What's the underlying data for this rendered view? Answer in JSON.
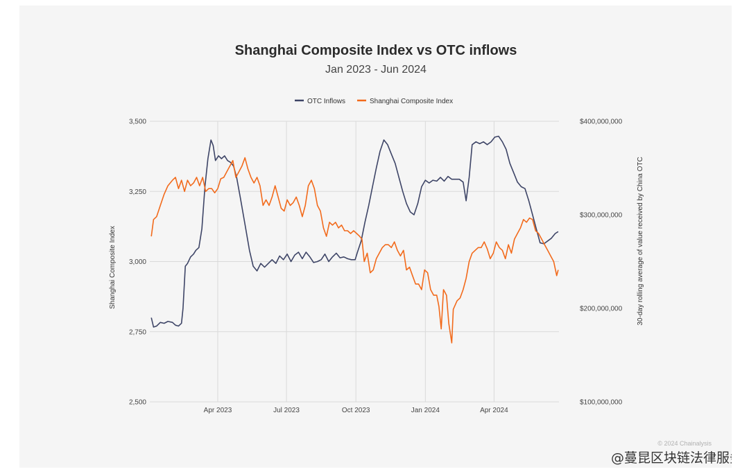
{
  "chart_data": {
    "type": "line",
    "title": "Shanghai Composite Index vs OTC inflows",
    "subtitle": "Jan 2023 - Jun 2024",
    "legend_position": "top-center",
    "grid": true,
    "x_ticks": [
      "Apr 2023",
      "Jul 2023",
      "Oct 2023",
      "Jan 2024",
      "Apr 2024"
    ],
    "y_left": {
      "label": "Shanghai Composite Index",
      "lim": [
        2500,
        3500
      ],
      "ticks": [
        "2,500",
        "2,750",
        "3,000",
        "3,250",
        "3,500"
      ]
    },
    "y_right": {
      "label": "30-day rolling average of value received by China OTC",
      "lim": [
        100000000,
        400000000
      ],
      "ticks": [
        "$100,000,000",
        "$200,000,000",
        "$300,000,000",
        "$400,000,000"
      ]
    },
    "series": [
      {
        "name": "OTC Inflows",
        "axis": "right",
        "color": "#3d4466",
        "points": [
          [
            "2023-01-03",
            190000000
          ],
          [
            "2023-01-06",
            180000000
          ],
          [
            "2023-01-10",
            181000000
          ],
          [
            "2023-01-15",
            185000000
          ],
          [
            "2023-01-20",
            184000000
          ],
          [
            "2023-01-25",
            186000000
          ],
          [
            "2023-01-31",
            185000000
          ],
          [
            "2023-02-04",
            182000000
          ],
          [
            "2023-02-08",
            181000000
          ],
          [
            "2023-02-12",
            184000000
          ],
          [
            "2023-02-14",
            200000000
          ],
          [
            "2023-02-17",
            245000000
          ],
          [
            "2023-02-20",
            248000000
          ],
          [
            "2023-02-24",
            255000000
          ],
          [
            "2023-02-28",
            258000000
          ],
          [
            "2023-03-03",
            262000000
          ],
          [
            "2023-03-07",
            265000000
          ],
          [
            "2023-03-11",
            285000000
          ],
          [
            "2023-03-15",
            330000000
          ],
          [
            "2023-03-19",
            360000000
          ],
          [
            "2023-03-23",
            380000000
          ],
          [
            "2023-03-26",
            374000000
          ],
          [
            "2023-03-29",
            358000000
          ],
          [
            "2023-04-02",
            363000000
          ],
          [
            "2023-04-06",
            360000000
          ],
          [
            "2023-04-10",
            363000000
          ],
          [
            "2023-04-14",
            358000000
          ],
          [
            "2023-04-18",
            356000000
          ],
          [
            "2023-04-22",
            352000000
          ],
          [
            "2023-04-26",
            340000000
          ],
          [
            "2023-05-01",
            318000000
          ],
          [
            "2023-05-07",
            290000000
          ],
          [
            "2023-05-13",
            262000000
          ],
          [
            "2023-05-18",
            245000000
          ],
          [
            "2023-05-23",
            240000000
          ],
          [
            "2023-05-28",
            248000000
          ],
          [
            "2023-06-02",
            244000000
          ],
          [
            "2023-06-07",
            248000000
          ],
          [
            "2023-06-12",
            252000000
          ],
          [
            "2023-06-17",
            248000000
          ],
          [
            "2023-06-22",
            256000000
          ],
          [
            "2023-06-27",
            252000000
          ],
          [
            "2023-07-02",
            258000000
          ],
          [
            "2023-07-07",
            250000000
          ],
          [
            "2023-07-12",
            257000000
          ],
          [
            "2023-07-17",
            260000000
          ],
          [
            "2023-07-22",
            253000000
          ],
          [
            "2023-07-27",
            260000000
          ],
          [
            "2023-08-01",
            255000000
          ],
          [
            "2023-08-06",
            249000000
          ],
          [
            "2023-08-11",
            250000000
          ],
          [
            "2023-08-16",
            252000000
          ],
          [
            "2023-08-21",
            258000000
          ],
          [
            "2023-08-26",
            250000000
          ],
          [
            "2023-08-31",
            255000000
          ],
          [
            "2023-09-05",
            259000000
          ],
          [
            "2023-09-10",
            254000000
          ],
          [
            "2023-09-15",
            255000000
          ],
          [
            "2023-09-20",
            253000000
          ],
          [
            "2023-09-25",
            252000000
          ],
          [
            "2023-09-30",
            252000000
          ],
          [
            "2023-10-03",
            260000000
          ],
          [
            "2023-10-08",
            272000000
          ],
          [
            "2023-10-13",
            292000000
          ],
          [
            "2023-10-18",
            310000000
          ],
          [
            "2023-10-23",
            330000000
          ],
          [
            "2023-10-28",
            350000000
          ],
          [
            "2023-11-02",
            368000000
          ],
          [
            "2023-11-07",
            380000000
          ],
          [
            "2023-11-12",
            375000000
          ],
          [
            "2023-11-17",
            365000000
          ],
          [
            "2023-11-22",
            355000000
          ],
          [
            "2023-11-27",
            340000000
          ],
          [
            "2023-12-02",
            325000000
          ],
          [
            "2023-12-07",
            312000000
          ],
          [
            "2023-12-12",
            303000000
          ],
          [
            "2023-12-17",
            300000000
          ],
          [
            "2023-12-22",
            312000000
          ],
          [
            "2023-12-27",
            330000000
          ],
          [
            "2024-01-01",
            337000000
          ],
          [
            "2024-01-06",
            334000000
          ],
          [
            "2024-01-11",
            337000000
          ],
          [
            "2024-01-16",
            336000000
          ],
          [
            "2024-01-21",
            340000000
          ],
          [
            "2024-01-26",
            336000000
          ],
          [
            "2024-01-31",
            341000000
          ],
          [
            "2024-02-05",
            338000000
          ],
          [
            "2024-02-10",
            338000000
          ],
          [
            "2024-02-15",
            338000000
          ],
          [
            "2024-02-20",
            335000000
          ],
          [
            "2024-02-24",
            315000000
          ],
          [
            "2024-02-28",
            340000000
          ],
          [
            "2024-03-03",
            375000000
          ],
          [
            "2024-03-08",
            378000000
          ],
          [
            "2024-03-13",
            376000000
          ],
          [
            "2024-03-18",
            378000000
          ],
          [
            "2024-03-23",
            375000000
          ],
          [
            "2024-03-28",
            378000000
          ],
          [
            "2024-04-02",
            383000000
          ],
          [
            "2024-04-07",
            384000000
          ],
          [
            "2024-04-12",
            378000000
          ],
          [
            "2024-04-17",
            370000000
          ],
          [
            "2024-04-22",
            355000000
          ],
          [
            "2024-04-27",
            345000000
          ],
          [
            "2024-05-02",
            335000000
          ],
          [
            "2024-05-07",
            330000000
          ],
          [
            "2024-05-12",
            328000000
          ],
          [
            "2024-05-17",
            315000000
          ],
          [
            "2024-05-22",
            300000000
          ],
          [
            "2024-05-27",
            285000000
          ],
          [
            "2024-06-01",
            270000000
          ],
          [
            "2024-06-06",
            269000000
          ],
          [
            "2024-06-11",
            272000000
          ],
          [
            "2024-06-16",
            275000000
          ],
          [
            "2024-06-21",
            280000000
          ],
          [
            "2024-06-25",
            282000000
          ]
        ]
      },
      {
        "name": "Shanghai Composite Index",
        "axis": "left",
        "color": "#f26a1b",
        "points": [
          [
            "2023-01-03",
            3090
          ],
          [
            "2023-01-06",
            3150
          ],
          [
            "2023-01-10",
            3160
          ],
          [
            "2023-01-15",
            3200
          ],
          [
            "2023-01-20",
            3240
          ],
          [
            "2023-01-25",
            3270
          ],
          [
            "2023-01-31",
            3290
          ],
          [
            "2023-02-04",
            3300
          ],
          [
            "2023-02-08",
            3260
          ],
          [
            "2023-02-12",
            3290
          ],
          [
            "2023-02-16",
            3250
          ],
          [
            "2023-02-20",
            3290
          ],
          [
            "2023-02-24",
            3270
          ],
          [
            "2023-02-28",
            3280
          ],
          [
            "2023-03-04",
            3300
          ],
          [
            "2023-03-08",
            3270
          ],
          [
            "2023-03-12",
            3300
          ],
          [
            "2023-03-16",
            3250
          ],
          [
            "2023-03-20",
            3260
          ],
          [
            "2023-03-24",
            3260
          ],
          [
            "2023-03-28",
            3245
          ],
          [
            "2023-04-01",
            3260
          ],
          [
            "2023-04-05",
            3295
          ],
          [
            "2023-04-09",
            3300
          ],
          [
            "2023-04-13",
            3320
          ],
          [
            "2023-04-17",
            3340
          ],
          [
            "2023-04-21",
            3360
          ],
          [
            "2023-04-25",
            3300
          ],
          [
            "2023-04-29",
            3320
          ],
          [
            "2023-05-03",
            3340
          ],
          [
            "2023-05-07",
            3370
          ],
          [
            "2023-05-11",
            3330
          ],
          [
            "2023-05-15",
            3300
          ],
          [
            "2023-05-19",
            3280
          ],
          [
            "2023-05-23",
            3300
          ],
          [
            "2023-05-27",
            3270
          ],
          [
            "2023-05-31",
            3200
          ],
          [
            "2023-06-04",
            3220
          ],
          [
            "2023-06-08",
            3200
          ],
          [
            "2023-06-12",
            3230
          ],
          [
            "2023-06-16",
            3270
          ],
          [
            "2023-06-20",
            3230
          ],
          [
            "2023-06-24",
            3190
          ],
          [
            "2023-06-28",
            3180
          ],
          [
            "2023-07-02",
            3220
          ],
          [
            "2023-07-06",
            3200
          ],
          [
            "2023-07-10",
            3210
          ],
          [
            "2023-07-14",
            3230
          ],
          [
            "2023-07-18",
            3200
          ],
          [
            "2023-07-22",
            3160
          ],
          [
            "2023-07-26",
            3200
          ],
          [
            "2023-07-30",
            3270
          ],
          [
            "2023-08-03",
            3290
          ],
          [
            "2023-08-07",
            3260
          ],
          [
            "2023-08-11",
            3200
          ],
          [
            "2023-08-15",
            3180
          ],
          [
            "2023-08-19",
            3120
          ],
          [
            "2023-08-23",
            3090
          ],
          [
            "2023-08-27",
            3140
          ],
          [
            "2023-08-31",
            3130
          ],
          [
            "2023-09-04",
            3140
          ],
          [
            "2023-09-08",
            3120
          ],
          [
            "2023-09-12",
            3130
          ],
          [
            "2023-09-16",
            3110
          ],
          [
            "2023-09-20",
            3110
          ],
          [
            "2023-09-24",
            3100
          ],
          [
            "2023-09-28",
            3110
          ],
          [
            "2023-10-02",
            3100
          ],
          [
            "2023-10-06",
            3090
          ],
          [
            "2023-10-09",
            3080
          ],
          [
            "2023-10-12",
            3000
          ],
          [
            "2023-10-16",
            3030
          ],
          [
            "2023-10-20",
            2960
          ],
          [
            "2023-10-24",
            2970
          ],
          [
            "2023-10-28",
            3010
          ],
          [
            "2023-11-01",
            3030
          ],
          [
            "2023-11-05",
            3050
          ],
          [
            "2023-11-09",
            3060
          ],
          [
            "2023-11-13",
            3060
          ],
          [
            "2023-11-17",
            3050
          ],
          [
            "2023-11-21",
            3070
          ],
          [
            "2023-11-25",
            3040
          ],
          [
            "2023-11-29",
            3020
          ],
          [
            "2023-12-03",
            3040
          ],
          [
            "2023-12-07",
            2970
          ],
          [
            "2023-12-11",
            2980
          ],
          [
            "2023-12-15",
            2950
          ],
          [
            "2023-12-19",
            2920
          ],
          [
            "2023-12-23",
            2920
          ],
          [
            "2023-12-27",
            2900
          ],
          [
            "2023-12-31",
            2970
          ],
          [
            "2024-01-04",
            2960
          ],
          [
            "2024-01-08",
            2900
          ],
          [
            "2024-01-12",
            2880
          ],
          [
            "2024-01-16",
            2880
          ],
          [
            "2024-01-19",
            2840
          ],
          [
            "2024-01-22",
            2760
          ],
          [
            "2024-01-25",
            2900
          ],
          [
            "2024-01-29",
            2880
          ],
          [
            "2024-02-01",
            2780
          ],
          [
            "2024-02-05",
            2710
          ],
          [
            "2024-02-07",
            2830
          ],
          [
            "2024-02-12",
            2860
          ],
          [
            "2024-02-16",
            2870
          ],
          [
            "2024-02-20",
            2900
          ],
          [
            "2024-02-24",
            2940
          ],
          [
            "2024-02-28",
            3000
          ],
          [
            "2024-03-03",
            3030
          ],
          [
            "2024-03-07",
            3040
          ],
          [
            "2024-03-11",
            3050
          ],
          [
            "2024-03-15",
            3050
          ],
          [
            "2024-03-19",
            3070
          ],
          [
            "2024-03-23",
            3045
          ],
          [
            "2024-03-27",
            3010
          ],
          [
            "2024-03-31",
            3030
          ],
          [
            "2024-04-04",
            3070
          ],
          [
            "2024-04-08",
            3050
          ],
          [
            "2024-04-12",
            3040
          ],
          [
            "2024-04-16",
            3010
          ],
          [
            "2024-04-20",
            3060
          ],
          [
            "2024-04-24",
            3030
          ],
          [
            "2024-04-28",
            3080
          ],
          [
            "2024-05-02",
            3100
          ],
          [
            "2024-05-06",
            3120
          ],
          [
            "2024-05-10",
            3150
          ],
          [
            "2024-05-14",
            3140
          ],
          [
            "2024-05-18",
            3155
          ],
          [
            "2024-05-22",
            3150
          ],
          [
            "2024-05-26",
            3110
          ],
          [
            "2024-05-30",
            3100
          ],
          [
            "2024-06-03",
            3080
          ],
          [
            "2024-06-07",
            3060
          ],
          [
            "2024-06-11",
            3040
          ],
          [
            "2024-06-15",
            3020
          ],
          [
            "2024-06-19",
            3000
          ],
          [
            "2024-06-23",
            2950
          ],
          [
            "2024-06-25",
            2970
          ]
        ]
      }
    ]
  },
  "credit": "© 2024 Chainalysis",
  "watermark": "@蔓昆区块链法律服务"
}
